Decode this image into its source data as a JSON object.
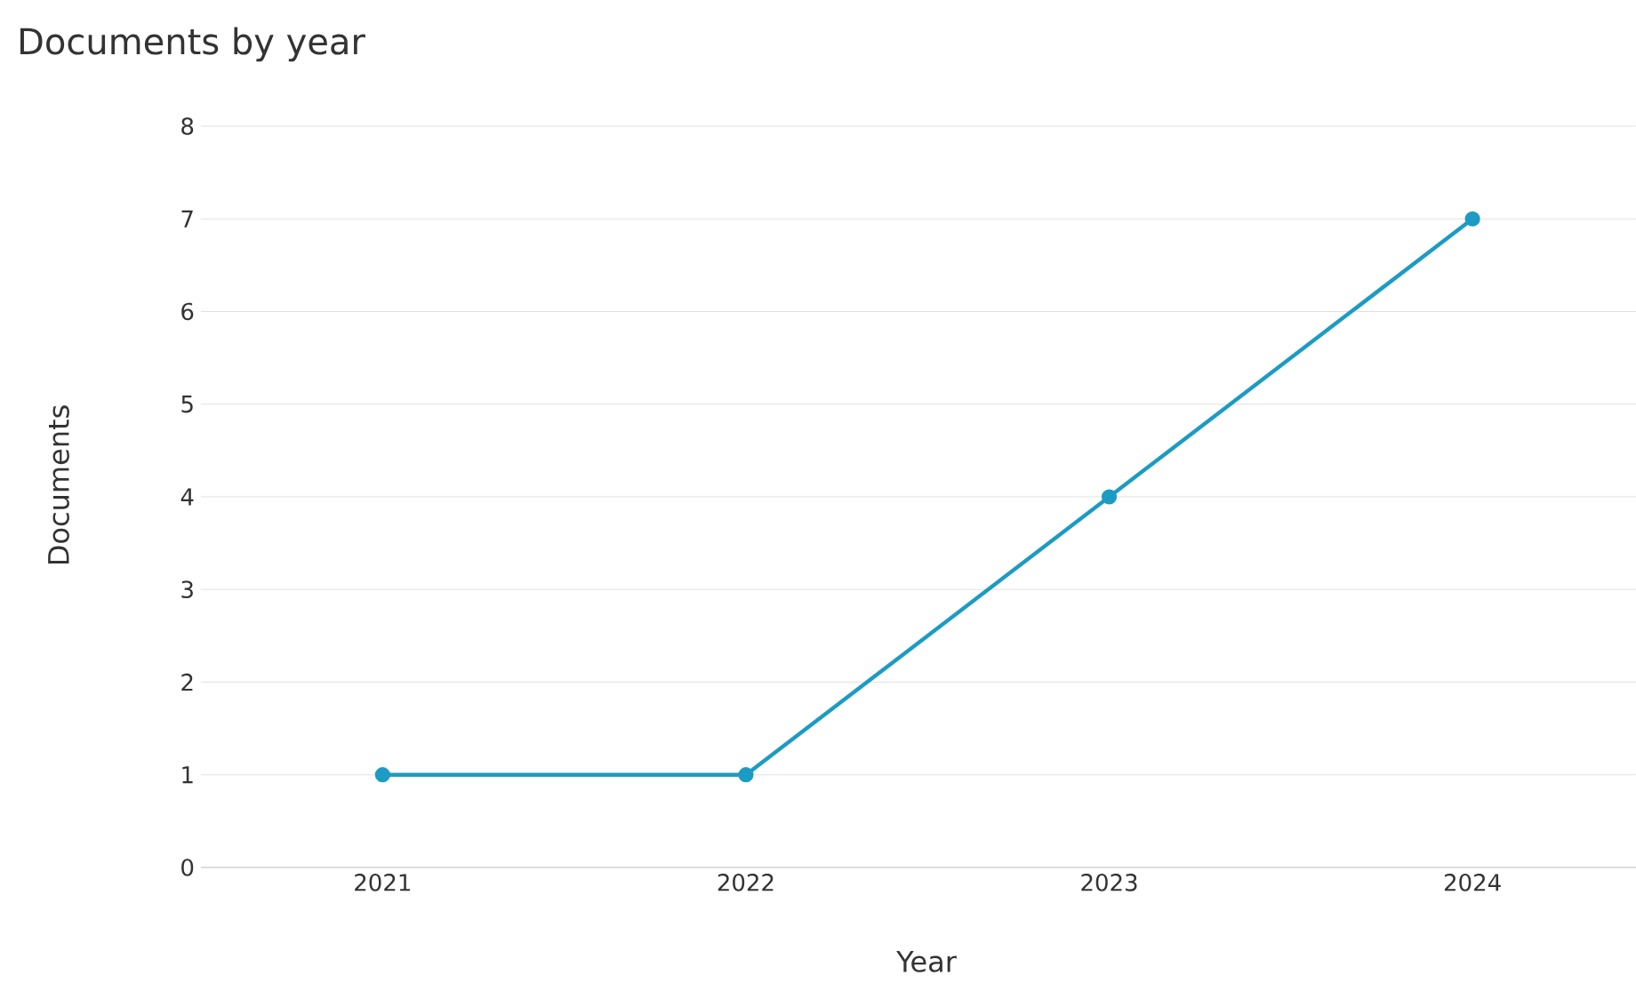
{
  "chart_data": {
    "type": "line",
    "title": "Documents by year",
    "xlabel": "Year",
    "ylabel": "Documents",
    "categories": [
      "2021",
      "2022",
      "2023",
      "2024"
    ],
    "series": [
      {
        "color": "#1c9bc4",
        "values": [
          1,
          1,
          4,
          7
        ]
      }
    ],
    "ylim": [
      0,
      8
    ],
    "yticks": [
      0,
      1,
      2,
      3,
      4,
      5,
      6,
      7,
      8
    ],
    "grid": "y",
    "marker": "circle",
    "line_style": "solid"
  }
}
